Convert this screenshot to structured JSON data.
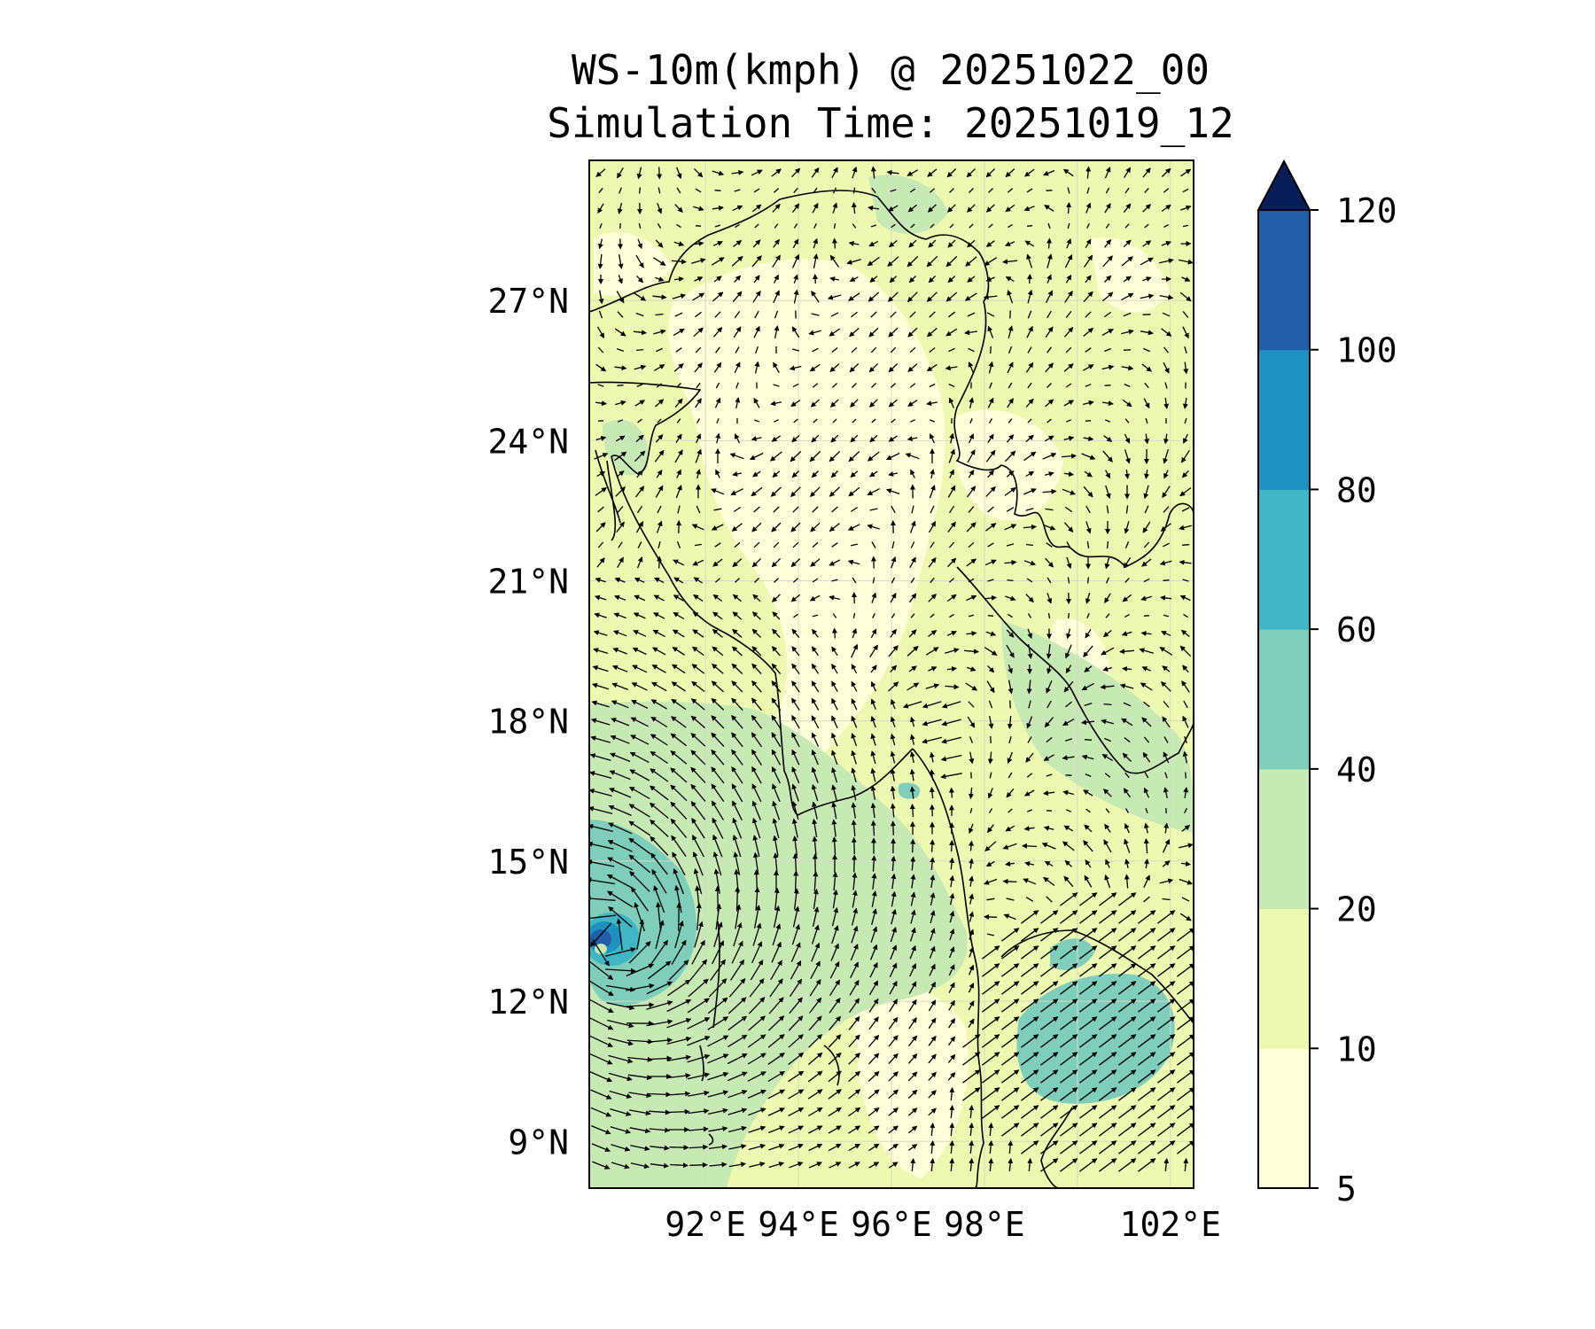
{
  "title": {
    "line1": "WS-10m(kmph) @ 20251022_00",
    "line2": "Simulation Time: 20251019_12"
  },
  "chart_data": {
    "type": "heatmap",
    "map": {
      "lon_range": [
        89.5,
        102.5
      ],
      "lat_range": [
        8.0,
        30.0
      ],
      "lat_ticks": [
        "27°N",
        "24°N",
        "21°N",
        "18°N",
        "15°N",
        "12°N",
        "9°N"
      ],
      "lat_values": [
        27,
        24,
        21,
        18,
        15,
        12,
        9
      ],
      "lon_ticks": [
        "92°E",
        "94°E",
        "96°E",
        "98°E",
        "102°E"
      ],
      "lon_values": [
        92,
        94,
        96,
        98,
        102
      ],
      "grid": true,
      "vectors": "wind barbs (arrows) over whole domain",
      "features": [
        "cyclone near 89.8°E 13.2°N (max ~100 kmph)",
        "high winds ~40-60 kmph over Gulf of Thailand",
        "weaker winds (<20 kmph) over Myanmar land"
      ]
    },
    "colorbar": {
      "label": "",
      "levels": [
        5,
        10,
        20,
        40,
        60,
        80,
        100,
        120
      ],
      "tick_labels": [
        "5",
        "10",
        "20",
        "40",
        "60",
        "80",
        "100",
        "120"
      ],
      "colors": [
        "#ffffd9",
        "#edf8b1",
        "#c7e9b4",
        "#7fcdbb",
        "#41b6c4",
        "#1d91c0",
        "#225ea8",
        "#253494"
      ],
      "extend_color": "#081d58",
      "extend": "max"
    }
  }
}
